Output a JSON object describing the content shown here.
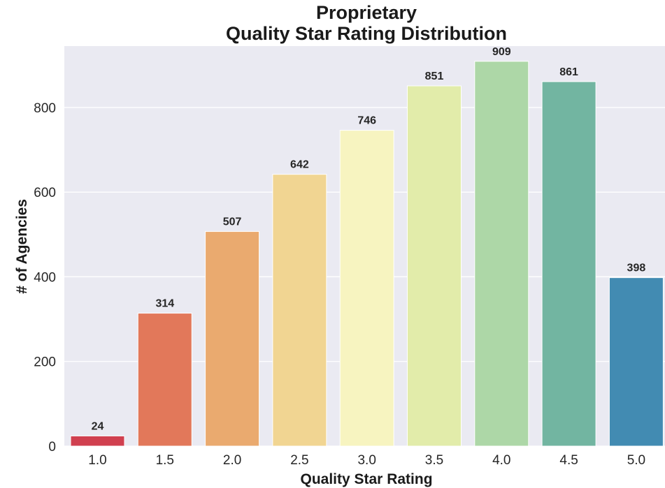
{
  "chart_data": {
    "type": "bar",
    "title_lines": [
      "Proprietary",
      "Quality Star Rating Distribution"
    ],
    "xlabel": "Quality Star Rating",
    "ylabel": "# of Agencies",
    "categories": [
      "1.0",
      "1.5",
      "2.0",
      "2.5",
      "3.0",
      "3.5",
      "4.0",
      "4.5",
      "5.0"
    ],
    "values": [
      24,
      314,
      507,
      642,
      746,
      851,
      909,
      861,
      398
    ],
    "value_labels": [
      "24",
      "314",
      "507",
      "642",
      "746",
      "851",
      "909",
      "861",
      "398"
    ],
    "bar_colors": [
      "#d0404f",
      "#e2785a",
      "#eaaa6f",
      "#f1d592",
      "#f7f4c0",
      "#e2ecaa",
      "#add7a7",
      "#72b5a1",
      "#428bb2"
    ],
    "ylim": [
      0,
      945
    ],
    "yticks": [
      0,
      200,
      400,
      600,
      800
    ],
    "ytick_labels": [
      "0",
      "200",
      "400",
      "600",
      "800"
    ],
    "grid": true,
    "background": "#eaeaf2",
    "gridline_color": "#ffffff",
    "legend": "none"
  }
}
